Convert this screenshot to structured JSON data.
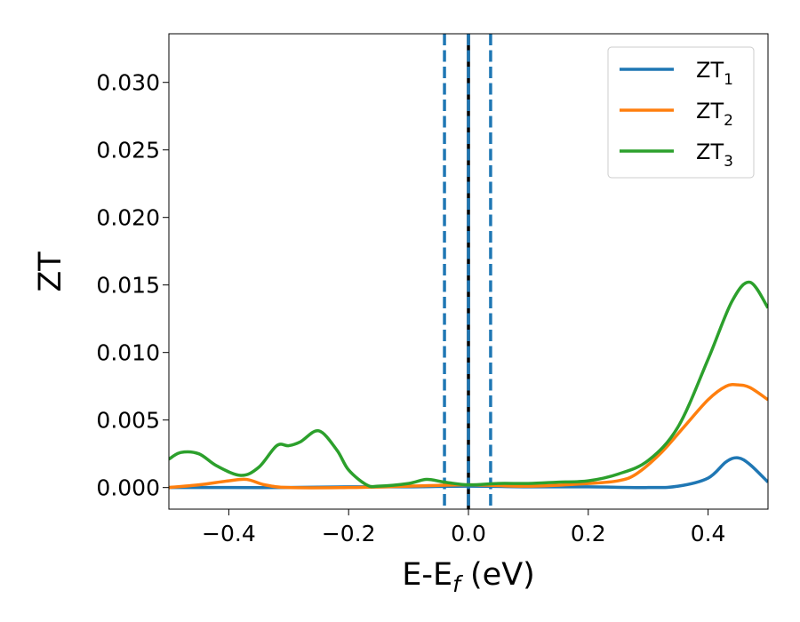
{
  "chart_data": {
    "type": "line",
    "xlabel_main": "E-E",
    "xlabel_sub": "f",
    "xlabel_tail": " (eV)",
    "ylabel": "ZT",
    "xlim": [
      -0.5,
      0.5
    ],
    "ylim": [
      -0.0016,
      0.0336
    ],
    "x_ticks": [
      {
        "value": -0.4,
        "label": "−0.4"
      },
      {
        "value": -0.2,
        "label": "−0.2"
      },
      {
        "value": 0.0,
        "label": "0.0"
      },
      {
        "value": 0.2,
        "label": "0.2"
      },
      {
        "value": 0.4,
        "label": "0.4"
      }
    ],
    "y_ticks": [
      {
        "value": 0.0,
        "label": "0.000"
      },
      {
        "value": 0.005,
        "label": "0.005"
      },
      {
        "value": 0.01,
        "label": "0.010"
      },
      {
        "value": 0.015,
        "label": "0.015"
      },
      {
        "value": 0.02,
        "label": "0.020"
      },
      {
        "value": 0.025,
        "label": "0.025"
      },
      {
        "value": 0.03,
        "label": "0.030"
      }
    ],
    "vertical_lines": [
      {
        "x": -0.04,
        "style": "dashed",
        "color": "#1f77b4"
      },
      {
        "x": 0.0,
        "style": "solid",
        "color": "#000000"
      },
      {
        "x": 0.0,
        "style": "dashed",
        "color": "#1f77b4"
      },
      {
        "x": 0.037,
        "style": "dashed",
        "color": "#1f77b4"
      }
    ],
    "legend_position": "top-right",
    "series": [
      {
        "name": "ZT",
        "sub": "1",
        "color": "#1f77b4",
        "x": [
          -0.5,
          -0.4,
          -0.3,
          -0.2,
          -0.1,
          0.0,
          0.1,
          0.2,
          0.3,
          0.35,
          0.4,
          0.43,
          0.45,
          0.47,
          0.5
        ],
        "y": [
          0.0,
          0.0,
          0.0,
          5e-05,
          5e-05,
          0.0001,
          5e-05,
          5e-05,
          0.0,
          0.0001,
          0.0007,
          0.0019,
          0.0022,
          0.0017,
          0.0004
        ]
      },
      {
        "name": "ZT",
        "sub": "2",
        "color": "#ff7f0e",
        "x": [
          -0.5,
          -0.45,
          -0.4,
          -0.37,
          -0.34,
          -0.3,
          -0.2,
          -0.1,
          0.0,
          0.1,
          0.2,
          0.25,
          0.28,
          0.32,
          0.36,
          0.4,
          0.43,
          0.45,
          0.47,
          0.5
        ],
        "y": [
          0.0,
          0.0002,
          0.0005,
          0.0006,
          0.0002,
          0.0,
          0.0,
          0.0001,
          0.0002,
          0.0001,
          0.0003,
          0.0005,
          0.001,
          0.0025,
          0.0045,
          0.0065,
          0.0075,
          0.0076,
          0.0074,
          0.0065
        ]
      },
      {
        "name": "ZT",
        "sub": "3",
        "color": "#2ca02c",
        "x": [
          -0.5,
          -0.48,
          -0.45,
          -0.42,
          -0.38,
          -0.35,
          -0.32,
          -0.3,
          -0.28,
          -0.25,
          -0.22,
          -0.2,
          -0.17,
          -0.15,
          -0.1,
          -0.07,
          -0.04,
          0.0,
          0.05,
          0.1,
          0.15,
          0.2,
          0.25,
          0.3,
          0.35,
          0.4,
          0.44,
          0.47,
          0.5
        ],
        "y": [
          0.0021,
          0.0026,
          0.0025,
          0.0016,
          0.0009,
          0.0015,
          0.0031,
          0.0031,
          0.0034,
          0.0042,
          0.0028,
          0.0013,
          0.0002,
          0.0001,
          0.0003,
          0.0006,
          0.0004,
          0.0002,
          0.0003,
          0.0003,
          0.0004,
          0.0005,
          0.001,
          0.002,
          0.0045,
          0.0095,
          0.0138,
          0.0152,
          0.0133
        ]
      }
    ]
  }
}
